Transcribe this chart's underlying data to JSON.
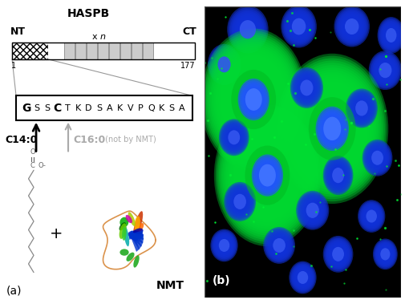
{
  "panel_a_label": "(a)",
  "panel_b_label": "(b)",
  "haspb_label": "HASPB",
  "nt_label": "NT",
  "ct_label": "CT",
  "xn_label": "x n",
  "num_1": "1",
  "num_177": "177",
  "sequence_text": "GSSCTKDSAKVPQKSA",
  "c14_label": "C14:0",
  "c16_label": "C16:0",
  "c16_suffix": " (not by NMT)",
  "nmt_label": "NMT",
  "plus_label": "+",
  "bg_color": "#ffffff",
  "gray_color": "#aaaaaa",
  "black_color": "#000000"
}
